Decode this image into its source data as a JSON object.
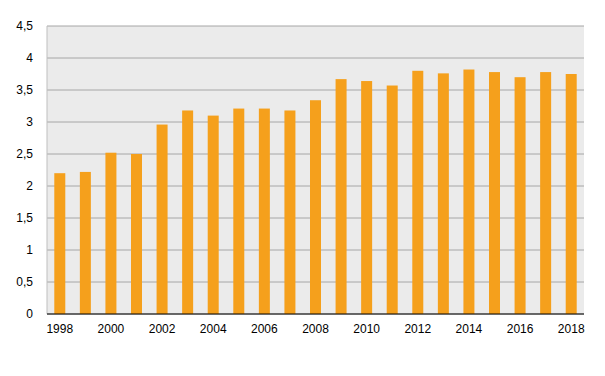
{
  "chart_data": {
    "type": "bar",
    "categories": [
      "1998",
      null,
      "2000",
      null,
      "2002",
      null,
      "2004",
      null,
      "2006",
      null,
      "2008",
      null,
      "2010",
      null,
      "2012",
      null,
      "2014",
      null,
      "2016",
      null,
      "2018"
    ],
    "values": [
      2.2,
      2.22,
      2.52,
      2.5,
      2.96,
      3.18,
      3.1,
      3.21,
      3.21,
      3.18,
      3.34,
      3.67,
      3.64,
      3.57,
      3.8,
      3.76,
      3.82,
      3.78,
      3.7,
      3.78,
      3.75
    ],
    "color": "#f5a01c",
    "ylim": [
      0,
      4.5
    ],
    "yticks": [
      0,
      {
        "value": 0.5,
        "label": "0,5"
      },
      1,
      {
        "value": 1.5,
        "label": "1,5"
      },
      2,
      {
        "value": 2.5,
        "label": "2,5"
      },
      3,
      {
        "value": 3.5,
        "label": "3,5"
      },
      4,
      {
        "value": 4.5,
        "label": "4,5"
      }
    ],
    "grid": true
  }
}
